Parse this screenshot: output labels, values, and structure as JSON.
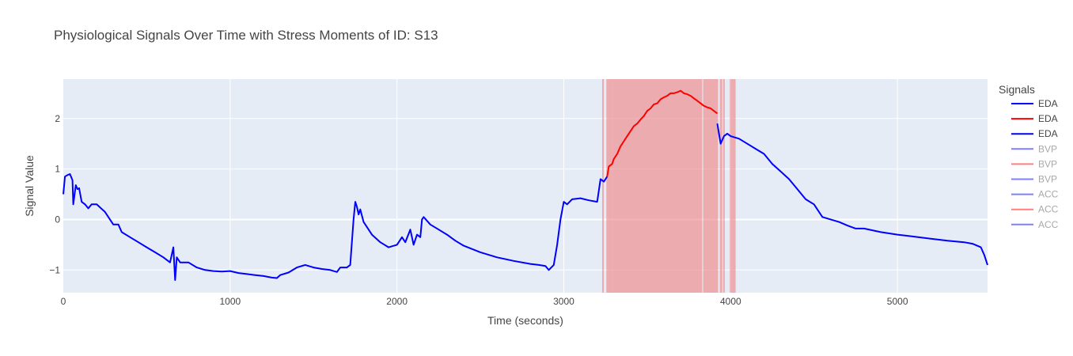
{
  "chart_data": {
    "type": "line",
    "title": "Physiological Signals Over Time with Stress Moments of ID: S13",
    "xlabel": "Time (seconds)",
    "ylabel": "Signal Value",
    "xlim": [
      0,
      5540
    ],
    "ylim": [
      -1.45,
      2.78
    ],
    "x_ticks": [
      0,
      1000,
      2000,
      3000,
      4000,
      5000
    ],
    "y_ticks": [
      -1,
      0,
      1,
      2
    ],
    "grid": true,
    "legend_position": "right",
    "legend_title": "Signals",
    "legend": [
      {
        "label": "EDA",
        "color": "#0000ff",
        "faded": false
      },
      {
        "label": "EDA",
        "color": "#ff0000",
        "faded": false
      },
      {
        "label": "EDA",
        "color": "#0000ff",
        "faded": false
      },
      {
        "label": "BVP",
        "color": "#0000ff",
        "faded": true
      },
      {
        "label": "BVP",
        "color": "#ff0000",
        "faded": true
      },
      {
        "label": "BVP",
        "color": "#0000ff",
        "faded": true
      },
      {
        "label": "ACC",
        "color": "#0000ff",
        "faded": true
      },
      {
        "label": "ACC",
        "color": "#ff0000",
        "faded": true
      },
      {
        "label": "ACC",
        "color": "#0000ff",
        "faded": true
      }
    ],
    "stress_regions": [
      [
        3230,
        3240
      ],
      [
        3255,
        3290
      ],
      [
        3290,
        3830
      ],
      [
        3835,
        3925
      ],
      [
        3935,
        3950
      ],
      [
        3955,
        3965
      ],
      [
        3995,
        4030
      ]
    ],
    "colors": {
      "baseline": "#0000ff",
      "stress": "#ff0000",
      "stress_band": "#f08080",
      "plot_bg": "#e5ecf6",
      "grid": "#ffffff"
    },
    "series": [
      {
        "name": "EDA",
        "segment": "baseline",
        "x": [
          0,
          10,
          25,
          40,
          55,
          60,
          75,
          85,
          95,
          110,
          130,
          150,
          170,
          200,
          250,
          300,
          330,
          350,
          400,
          450,
          500,
          550,
          600,
          640,
          660,
          670,
          680,
          700,
          750,
          800,
          850,
          900,
          950,
          1000,
          1050,
          1100,
          1150,
          1200,
          1250,
          1280,
          1300,
          1350,
          1400,
          1450,
          1500,
          1550,
          1600,
          1640,
          1660,
          1700,
          1720,
          1740,
          1750,
          1760,
          1770,
          1780,
          1800,
          1850,
          1900,
          1950,
          2000,
          2030,
          2050,
          2080,
          2100,
          2120,
          2140,
          2150,
          2160,
          2200,
          2250,
          2300,
          2350,
          2400,
          2500,
          2600,
          2700,
          2800,
          2850,
          2890,
          2910,
          2940,
          2960,
          2980,
          3000,
          3020,
          3050,
          3100,
          3150,
          3200,
          3220,
          3240,
          3260
        ],
        "y": [
          0.5,
          0.85,
          0.88,
          0.9,
          0.78,
          0.3,
          0.68,
          0.6,
          0.62,
          0.35,
          0.3,
          0.22,
          0.3,
          0.3,
          0.15,
          -0.1,
          -0.1,
          -0.25,
          -0.35,
          -0.45,
          -0.55,
          -0.65,
          -0.75,
          -0.85,
          -0.55,
          -1.2,
          -0.75,
          -0.85,
          -0.85,
          -0.95,
          -1.0,
          -1.02,
          -1.03,
          -1.02,
          -1.06,
          -1.08,
          -1.1,
          -1.12,
          -1.15,
          -1.16,
          -1.1,
          -1.05,
          -0.95,
          -0.9,
          -0.95,
          -0.98,
          -1.0,
          -1.04,
          -0.95,
          -0.95,
          -0.9,
          0.0,
          0.35,
          0.25,
          0.1,
          0.2,
          -0.05,
          -0.3,
          -0.45,
          -0.55,
          -0.5,
          -0.35,
          -0.45,
          -0.2,
          -0.5,
          -0.3,
          -0.35,
          0.0,
          0.05,
          -0.1,
          -0.2,
          -0.3,
          -0.42,
          -0.52,
          -0.65,
          -0.75,
          -0.82,
          -0.88,
          -0.9,
          -0.92,
          -1.0,
          -0.9,
          -0.5,
          0.0,
          0.35,
          0.3,
          0.4,
          0.42,
          0.38,
          0.35,
          0.8,
          0.75,
          0.85
        ]
      },
      {
        "name": "EDA",
        "segment": "stress",
        "x": [
          3260,
          3270,
          3290,
          3300,
          3320,
          3340,
          3360,
          3380,
          3400,
          3420,
          3440,
          3460,
          3480,
          3500,
          3520,
          3540,
          3560,
          3580,
          3600,
          3620,
          3640,
          3660,
          3680,
          3700,
          3720,
          3740,
          3760,
          3780,
          3800,
          3820,
          3840,
          3860,
          3880,
          3900,
          3920
        ],
        "y": [
          0.85,
          1.05,
          1.1,
          1.2,
          1.3,
          1.45,
          1.55,
          1.65,
          1.75,
          1.85,
          1.9,
          1.98,
          2.05,
          2.15,
          2.2,
          2.28,
          2.3,
          2.38,
          2.42,
          2.45,
          2.5,
          2.5,
          2.52,
          2.55,
          2.5,
          2.48,
          2.45,
          2.4,
          2.35,
          2.3,
          2.25,
          2.22,
          2.2,
          2.15,
          2.1
        ]
      },
      {
        "name": "EDA",
        "segment": "baseline",
        "x": [
          3920,
          3940,
          3960,
          3980,
          4000,
          4050,
          4100,
          4150,
          4200,
          4250,
          4300,
          4350,
          4400,
          4450,
          4500,
          4550,
          4600,
          4650,
          4700,
          4750,
          4800,
          4900,
          5000,
          5100,
          5200,
          5300,
          5400,
          5450,
          5500,
          5520,
          5540
        ],
        "y": [
          1.9,
          1.5,
          1.65,
          1.7,
          1.65,
          1.6,
          1.5,
          1.4,
          1.3,
          1.1,
          0.95,
          0.8,
          0.6,
          0.4,
          0.3,
          0.05,
          0.0,
          -0.05,
          -0.12,
          -0.18,
          -0.18,
          -0.25,
          -0.3,
          -0.34,
          -0.38,
          -0.42,
          -0.45,
          -0.48,
          -0.55,
          -0.7,
          -0.9
        ]
      }
    ]
  }
}
